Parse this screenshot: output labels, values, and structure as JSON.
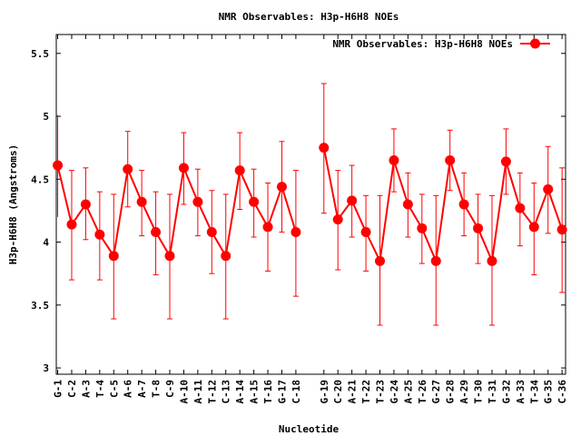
{
  "chart_data": {
    "type": "line",
    "title": "NMR Observables: H3p-H6H8 NOEs",
    "xlabel": "Nucleotide",
    "ylabel": "H3p-H6H8 (Angstroms)",
    "ylim": [
      2.95,
      5.65
    ],
    "yticks": [
      3,
      3.5,
      4,
      4.5,
      5,
      5.5
    ],
    "ytick_labels": [
      "3",
      "3.5",
      "4",
      "4.5",
      "5",
      "5.5"
    ],
    "grid": false,
    "legend_position": "top-right",
    "categories": [
      "G-1",
      "C-2",
      "A-3",
      "T-4",
      "C-5",
      "A-6",
      "A-7",
      "T-8",
      "C-9",
      "A-10",
      "A-11",
      "T-12",
      "C-13",
      "A-14",
      "A-15",
      "T-16",
      "G-17",
      "C-18",
      "G-19",
      "C-20",
      "A-21",
      "T-22",
      "T-23",
      "G-24",
      "A-25",
      "T-26",
      "G-27",
      "G-28",
      "A-29",
      "T-30",
      "T-31",
      "G-32",
      "A-33",
      "T-34",
      "G-35",
      "C-36"
    ],
    "x": [
      1,
      2,
      3,
      4,
      5,
      6,
      7,
      8,
      9,
      10,
      11,
      12,
      13,
      14,
      15,
      16,
      17,
      18,
      20,
      21,
      22,
      23,
      24,
      25,
      26,
      27,
      28,
      29,
      30,
      31,
      32,
      33,
      34,
      35,
      36,
      37
    ],
    "series": [
      {
        "name": "NMR Observables: H3p-H6H8 NOEs",
        "color": "#ff0000",
        "segments": [
          [
            0,
            17
          ],
          [
            18,
            35
          ]
        ],
        "values": [
          4.61,
          4.14,
          4.3,
          4.06,
          3.89,
          4.58,
          4.32,
          4.08,
          3.89,
          4.59,
          4.32,
          4.08,
          3.89,
          4.57,
          4.32,
          4.12,
          4.44,
          4.08,
          4.75,
          4.18,
          4.33,
          4.08,
          3.85,
          4.65,
          4.3,
          4.11,
          3.85,
          4.65,
          4.3,
          4.11,
          3.85,
          4.64,
          4.27,
          4.12,
          4.42,
          4.1
        ],
        "err_low": [
          4.2,
          3.7,
          4.02,
          3.7,
          3.39,
          4.28,
          4.05,
          3.74,
          3.39,
          4.3,
          4.05,
          3.75,
          3.39,
          4.26,
          4.04,
          3.77,
          4.08,
          3.57,
          4.23,
          3.78,
          4.04,
          3.77,
          3.34,
          4.4,
          4.04,
          3.83,
          3.34,
          4.41,
          4.05,
          3.83,
          3.34,
          4.38,
          3.97,
          3.74,
          4.07,
          3.6
        ],
        "err_high": [
          5.01,
          4.57,
          4.59,
          4.4,
          4.38,
          4.88,
          4.57,
          4.4,
          4.38,
          4.87,
          4.58,
          4.41,
          4.38,
          4.87,
          4.58,
          4.47,
          4.8,
          4.57,
          5.26,
          4.57,
          4.61,
          4.37,
          4.37,
          4.9,
          4.55,
          4.38,
          4.37,
          4.89,
          4.55,
          4.38,
          4.37,
          4.9,
          4.55,
          4.47,
          4.76,
          4.59
        ]
      }
    ]
  }
}
